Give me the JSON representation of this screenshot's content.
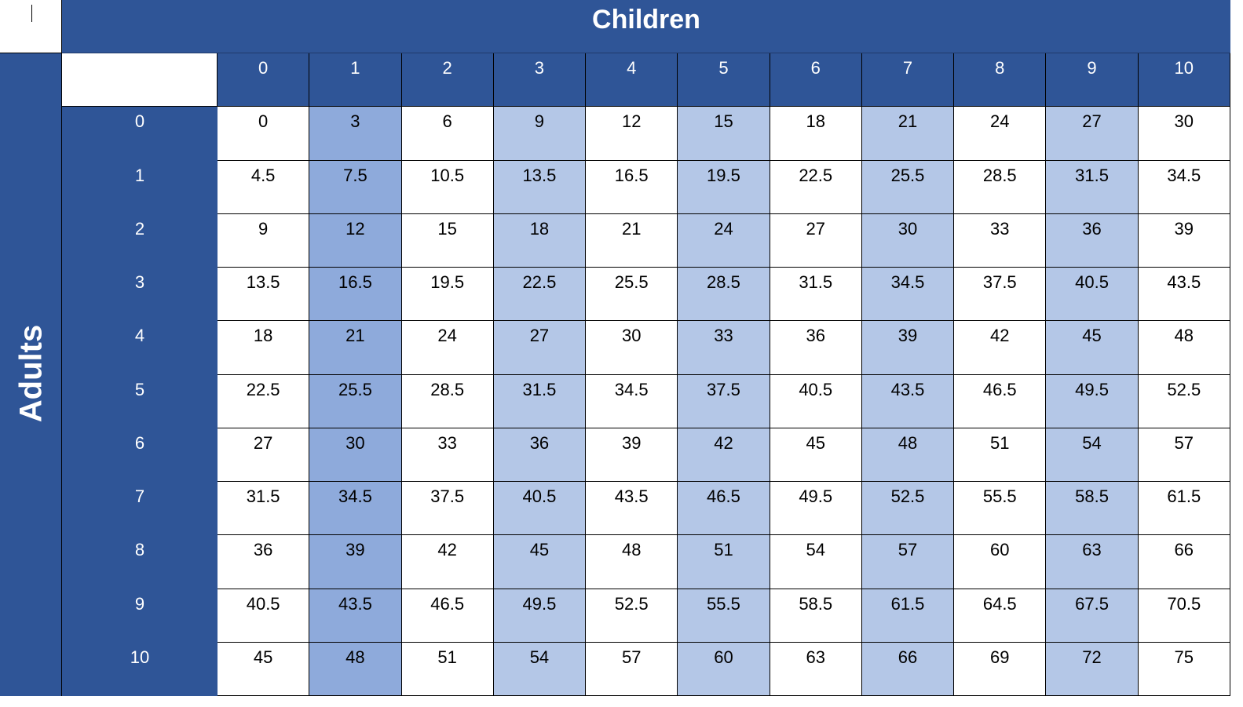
{
  "header": {
    "title": "Children"
  },
  "side": {
    "title": "Adults"
  },
  "table": {
    "columns": [
      "0",
      "1",
      "2",
      "3",
      "4",
      "5",
      "6",
      "7",
      "8",
      "9",
      "10"
    ],
    "rows": [
      {
        "label": "0",
        "values": [
          "0",
          "3",
          "6",
          "9",
          "12",
          "15",
          "18",
          "21",
          "24",
          "27",
          "30"
        ]
      },
      {
        "label": "1",
        "values": [
          "4.5",
          "7.5",
          "10.5",
          "13.5",
          "16.5",
          "19.5",
          "22.5",
          "25.5",
          "28.5",
          "31.5",
          "34.5"
        ]
      },
      {
        "label": "2",
        "values": [
          "9",
          "12",
          "15",
          "18",
          "21",
          "24",
          "27",
          "30",
          "33",
          "36",
          "39"
        ]
      },
      {
        "label": "3",
        "values": [
          "13.5",
          "16.5",
          "19.5",
          "22.5",
          "25.5",
          "28.5",
          "31.5",
          "34.5",
          "37.5",
          "40.5",
          "43.5"
        ]
      },
      {
        "label": "4",
        "values": [
          "18",
          "21",
          "24",
          "27",
          "30",
          "33",
          "36",
          "39",
          "42",
          "45",
          "48"
        ]
      },
      {
        "label": "5",
        "values": [
          "22.5",
          "25.5",
          "28.5",
          "31.5",
          "34.5",
          "37.5",
          "40.5",
          "43.5",
          "46.5",
          "49.5",
          "52.5"
        ]
      },
      {
        "label": "6",
        "values": [
          "27",
          "30",
          "33",
          "36",
          "39",
          "42",
          "45",
          "48",
          "51",
          "54",
          "57"
        ]
      },
      {
        "label": "7",
        "values": [
          "31.5",
          "34.5",
          "37.5",
          "40.5",
          "43.5",
          "46.5",
          "49.5",
          "52.5",
          "55.5",
          "58.5",
          "61.5"
        ]
      },
      {
        "label": "8",
        "values": [
          "36",
          "39",
          "42",
          "45",
          "48",
          "51",
          "54",
          "57",
          "60",
          "63",
          "66"
        ]
      },
      {
        "label": "9",
        "values": [
          "40.5",
          "43.5",
          "46.5",
          "49.5",
          "52.5",
          "55.5",
          "58.5",
          "61.5",
          "64.5",
          "67.5",
          "70.5"
        ]
      },
      {
        "label": "10",
        "values": [
          "45",
          "48",
          "51",
          "54",
          "57",
          "60",
          "63",
          "66",
          "69",
          "72",
          "75"
        ]
      }
    ]
  },
  "colors": {
    "header_bg": "#2f5597",
    "header_text": "#ffffff",
    "shade_dark": "#8eaadb",
    "shade_light": "#b4c7e7",
    "cell_bg": "#ffffff"
  }
}
